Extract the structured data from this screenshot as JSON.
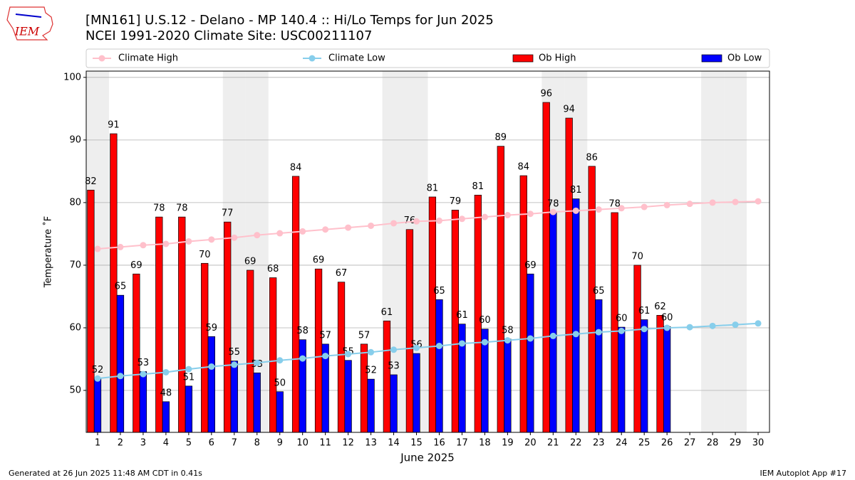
{
  "chart_data": {
    "type": "bar",
    "title": "[MN161] U.S.12 - Delano - MP 140.4  :: Hi/Lo Temps for Jun 2025",
    "subtitle": "NCEI 1991-2020 Climate Site: USC00211107",
    "logo_text": "IEM",
    "xlabel": "June 2025",
    "ylabel": "Temperature ˚F",
    "footer_left": "Generated at 26 Jun 2025 11:48 AM CDT in 0.41s",
    "footer_right": "IEM Autoplot App #17",
    "x": [
      1,
      2,
      3,
      4,
      5,
      6,
      7,
      8,
      9,
      10,
      11,
      12,
      13,
      14,
      15,
      16,
      17,
      18,
      19,
      20,
      21,
      22,
      23,
      24,
      25,
      26,
      27,
      28,
      29,
      30
    ],
    "xlim": [
      0.5,
      30.5
    ],
    "xticks": [
      1,
      2,
      3,
      4,
      5,
      6,
      7,
      8,
      9,
      10,
      11,
      12,
      13,
      14,
      15,
      16,
      17,
      18,
      19,
      20,
      21,
      22,
      23,
      24,
      25,
      26,
      27,
      28,
      29,
      30
    ],
    "ylim": [
      43.3,
      101
    ],
    "yticks": [
      50,
      60,
      70,
      80,
      90,
      100
    ],
    "grid": true,
    "weekend_days": [
      1,
      7,
      8,
      14,
      15,
      21,
      22,
      28,
      29
    ],
    "series": [
      {
        "name": "Climate High",
        "type": "line",
        "color": "#ffc0cb",
        "values": [
          72.6,
          72.9,
          73.2,
          73.4,
          73.8,
          74.1,
          74.4,
          74.8,
          75.1,
          75.4,
          75.7,
          76.0,
          76.3,
          76.7,
          77.0,
          77.1,
          77.4,
          77.7,
          78.0,
          78.2,
          78.5,
          78.7,
          78.9,
          79.1,
          79.3,
          79.6,
          79.8,
          80.0,
          80.1,
          80.2
        ]
      },
      {
        "name": "Climate Low",
        "type": "line",
        "color": "#87ceeb",
        "values": [
          51.9,
          52.3,
          52.6,
          52.9,
          53.4,
          53.8,
          54.1,
          54.4,
          54.8,
          55.1,
          55.5,
          55.8,
          56.1,
          56.5,
          56.8,
          57.1,
          57.5,
          57.7,
          58.0,
          58.3,
          58.7,
          59.0,
          59.3,
          59.5,
          59.8,
          60.0,
          60.1,
          60.3,
          60.5,
          60.7
        ]
      },
      {
        "name": "Ob High",
        "type": "bar",
        "color": "#ff0000",
        "values": [
          82.0,
          91.0,
          68.6,
          77.7,
          77.7,
          70.3,
          76.9,
          69.2,
          68.0,
          84.2,
          69.4,
          67.3,
          57.4,
          61.1,
          75.7,
          80.9,
          78.8,
          81.2,
          89.0,
          84.3,
          96.0,
          93.5,
          85.8,
          78.4,
          70.0,
          62.0,
          null,
          null,
          null,
          null
        ],
        "value_labels": [
          "82",
          "91",
          "69",
          "78",
          "78",
          "70",
          "77",
          "69",
          "68",
          "84",
          "69",
          "67",
          "57",
          "61",
          "76",
          "81",
          "79",
          "81",
          "89",
          "84",
          "96",
          "94",
          "86",
          "78",
          "70",
          "62",
          null,
          null,
          null,
          null
        ]
      },
      {
        "name": "Ob Low",
        "type": "bar",
        "color": "#0000ff",
        "values": [
          51.9,
          65.2,
          53.0,
          48.2,
          50.7,
          58.6,
          54.7,
          52.8,
          49.8,
          58.1,
          57.4,
          54.8,
          51.8,
          52.5,
          55.9,
          64.5,
          60.6,
          59.8,
          58.2,
          68.6,
          78.4,
          80.6,
          64.5,
          60.1,
          61.3,
          60.2,
          null,
          null,
          null,
          null
        ],
        "value_labels": [
          "52",
          "65",
          "53",
          "48",
          "51",
          "59",
          "55",
          "53",
          "50",
          "58",
          "57",
          "55",
          "52",
          "53",
          "56",
          "65",
          "61",
          "60",
          "58",
          "69",
          "78",
          "81",
          "65",
          "60",
          "61",
          "60",
          null,
          null,
          null,
          null
        ]
      }
    ]
  }
}
